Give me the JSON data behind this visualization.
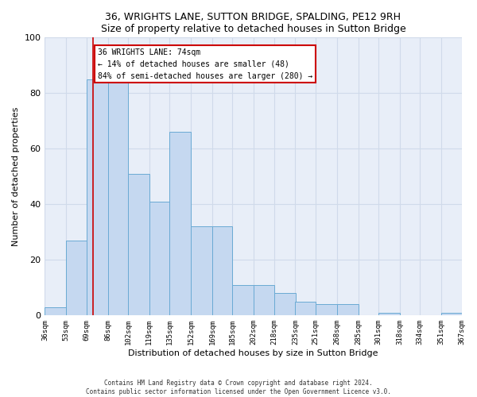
{
  "title": "36, WRIGHTS LANE, SUTTON BRIDGE, SPALDING, PE12 9RH",
  "subtitle": "Size of property relative to detached houses in Sutton Bridge",
  "xlabel": "Distribution of detached houses by size in Sutton Bridge",
  "ylabel": "Number of detached properties",
  "bin_edges": [
    36,
    53,
    69,
    86,
    102,
    119,
    135,
    152,
    169,
    185,
    202,
    218,
    235,
    251,
    268,
    285,
    301,
    318,
    334,
    351,
    367
  ],
  "bar_heights": [
    3,
    27,
    85,
    85,
    51,
    41,
    66,
    32,
    32,
    11,
    11,
    8,
    5,
    4,
    4,
    0,
    1,
    0,
    0,
    1
  ],
  "bar_color": "#c5d8f0",
  "bar_edge_color": "#6aaad4",
  "grid_color": "#d0daea",
  "background_color": "#e8eef8",
  "red_line_x": 74,
  "annotation_text": "36 WRIGHTS LANE: 74sqm\n← 14% of detached houses are smaller (48)\n84% of semi-detached houses are larger (280) →",
  "annotation_box_facecolor": "#ffffff",
  "annotation_box_edgecolor": "#cc0000",
  "ylim": [
    0,
    100
  ],
  "yticks": [
    0,
    20,
    40,
    60,
    80,
    100
  ],
  "footnote": "Contains HM Land Registry data © Crown copyright and database right 2024.\nContains public sector information licensed under the Open Government Licence v3.0.",
  "tick_labels": [
    "36sqm",
    "53sqm",
    "69sqm",
    "86sqm",
    "102sqm",
    "119sqm",
    "135sqm",
    "152sqm",
    "169sqm",
    "185sqm",
    "202sqm",
    "218sqm",
    "235sqm",
    "251sqm",
    "268sqm",
    "285sqm",
    "301sqm",
    "318sqm",
    "334sqm",
    "351sqm",
    "367sqm"
  ]
}
